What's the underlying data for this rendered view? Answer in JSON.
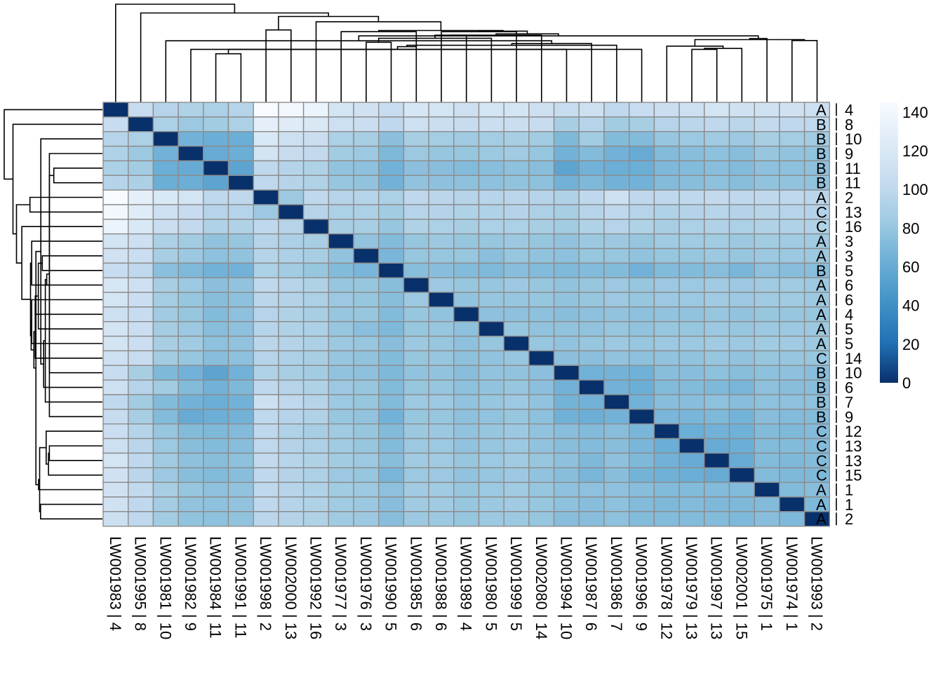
{
  "chart_data": {
    "type": "heatmap",
    "title": "",
    "colorscale": {
      "name": "Blues",
      "min": 0,
      "max": 145,
      "ticks": [
        0,
        20,
        40,
        60,
        80,
        100,
        120,
        140
      ],
      "stops": [
        "#08306b",
        "#2171b5",
        "#4292c6",
        "#6baed6",
        "#9ecae1",
        "#c6dbef",
        "#deebf7",
        "#f7fbff"
      ]
    },
    "samples": [
      {
        "id": "LW001983",
        "group": "A",
        "value": "4"
      },
      {
        "id": "LW001995",
        "group": "B",
        "value": "8"
      },
      {
        "id": "LW001981",
        "group": "B",
        "value": "10"
      },
      {
        "id": "LW001982",
        "group": "B",
        "value": "9"
      },
      {
        "id": "LW001984",
        "group": "B",
        "value": "11"
      },
      {
        "id": "LW001991",
        "group": "B",
        "value": "11"
      },
      {
        "id": "LW001998",
        "group": "A",
        "value": "2"
      },
      {
        "id": "LW002000",
        "group": "C",
        "value": "13"
      },
      {
        "id": "LW001992",
        "group": "C",
        "value": "16"
      },
      {
        "id": "LW001977",
        "group": "A",
        "value": "3"
      },
      {
        "id": "LW001976",
        "group": "A",
        "value": "3"
      },
      {
        "id": "LW001990",
        "group": "B",
        "value": "5"
      },
      {
        "id": "LW001985",
        "group": "A",
        "value": "6"
      },
      {
        "id": "LW001988",
        "group": "A",
        "value": "6"
      },
      {
        "id": "LW001989",
        "group": "A",
        "value": "4"
      },
      {
        "id": "LW001980",
        "group": "A",
        "value": "5"
      },
      {
        "id": "LW001999",
        "group": "A",
        "value": "5"
      },
      {
        "id": "LW002080",
        "group": "C",
        "value": "14"
      },
      {
        "id": "LW001994",
        "group": "B",
        "value": "10"
      },
      {
        "id": "LW001987",
        "group": "B",
        "value": "6"
      },
      {
        "id": "LW001986",
        "group": "B",
        "value": "7"
      },
      {
        "id": "LW001996",
        "group": "B",
        "value": "9"
      },
      {
        "id": "LW001978",
        "group": "C",
        "value": "12"
      },
      {
        "id": "LW001979",
        "group": "C",
        "value": "13"
      },
      {
        "id": "LW001997",
        "group": "C",
        "value": "13"
      },
      {
        "id": "LW002001",
        "group": "C",
        "value": "15"
      },
      {
        "id": "LW001975",
        "group": "A",
        "value": "1"
      },
      {
        "id": "LW001974",
        "group": "A",
        "value": "1"
      },
      {
        "id": "LW001993",
        "group": "A",
        "value": "2"
      }
    ],
    "matrix_lower": [
      [],
      [
        105
      ],
      [
        95,
        90
      ],
      [
        92,
        82,
        65
      ],
      [
        90,
        85,
        62,
        60
      ],
      [
        95,
        90,
        62,
        62,
        55
      ],
      [
        145,
        130,
        120,
        115,
        100,
        100
      ],
      [
        140,
        125,
        110,
        105,
        95,
        95,
        82
      ],
      [
        135,
        120,
        108,
        102,
        92,
        92,
        100,
        95
      ],
      [
        115,
        110,
        90,
        85,
        78,
        80,
        95,
        90,
        88
      ],
      [
        112,
        108,
        88,
        82,
        76,
        78,
        95,
        90,
        88,
        78
      ],
      [
        105,
        100,
        75,
        70,
        65,
        65,
        90,
        85,
        80,
        72,
        68
      ],
      [
        118,
        110,
        88,
        82,
        75,
        78,
        100,
        95,
        92,
        80,
        80,
        74
      ],
      [
        115,
        108,
        86,
        80,
        74,
        76,
        98,
        94,
        90,
        82,
        80,
        74,
        82
      ],
      [
        110,
        105,
        84,
        80,
        72,
        76,
        95,
        92,
        88,
        80,
        80,
        72,
        80,
        78
      ],
      [
        115,
        108,
        86,
        82,
        74,
        76,
        96,
        92,
        90,
        80,
        75,
        70,
        80,
        80,
        76
      ],
      [
        115,
        108,
        88,
        84,
        76,
        78,
        98,
        94,
        90,
        82,
        80,
        74,
        82,
        80,
        76,
        80
      ],
      [
        110,
        105,
        85,
        80,
        74,
        76,
        95,
        90,
        88,
        80,
        78,
        72,
        80,
        80,
        76,
        78,
        80
      ],
      [
        105,
        88,
        70,
        65,
        55,
        65,
        92,
        88,
        85,
        78,
        76,
        70,
        78,
        78,
        74,
        78,
        78,
        75
      ],
      [
        110,
        95,
        85,
        72,
        65,
        70,
        100,
        95,
        92,
        82,
        80,
        72,
        80,
        80,
        76,
        78,
        80,
        75,
        65
      ],
      [
        100,
        85,
        72,
        65,
        62,
        65,
        110,
        100,
        95,
        82,
        80,
        72,
        82,
        82,
        78,
        80,
        82,
        78,
        66,
        65
      ],
      [
        105,
        88,
        72,
        60,
        62,
        65,
        100,
        95,
        92,
        80,
        78,
        65,
        80,
        80,
        76,
        78,
        80,
        76,
        64,
        62,
        65
      ],
      [
        108,
        95,
        80,
        72,
        70,
        72,
        100,
        92,
        88,
        84,
        80,
        72,
        82,
        82,
        78,
        80,
        82,
        78,
        74,
        72,
        74,
        68
      ],
      [
        110,
        98,
        82,
        74,
        72,
        74,
        100,
        94,
        90,
        84,
        80,
        72,
        82,
        82,
        78,
        80,
        82,
        78,
        74,
        72,
        74,
        68,
        62
      ],
      [
        115,
        100,
        84,
        76,
        74,
        76,
        102,
        96,
        92,
        85,
        82,
        74,
        84,
        84,
        80,
        82,
        84,
        80,
        76,
        70,
        76,
        70,
        65,
        60
      ],
      [
        112,
        98,
        82,
        74,
        72,
        74,
        100,
        94,
        90,
        82,
        80,
        68,
        82,
        82,
        78,
        80,
        82,
        78,
        74,
        68,
        74,
        66,
        64,
        62,
        60
      ],
      [
        112,
        102,
        88,
        80,
        76,
        78,
        100,
        96,
        92,
        85,
        82,
        76,
        84,
        84,
        80,
        82,
        84,
        80,
        76,
        76,
        76,
        74,
        72,
        72,
        72,
        72
      ],
      [
        112,
        100,
        86,
        78,
        76,
        78,
        100,
        95,
        92,
        84,
        82,
        74,
        84,
        84,
        80,
        82,
        84,
        80,
        76,
        74,
        76,
        72,
        70,
        72,
        70,
        70,
        72
      ],
      [
        110,
        100,
        85,
        78,
        76,
        78,
        98,
        94,
        92,
        84,
        82,
        74,
        82,
        82,
        80,
        82,
        82,
        80,
        74,
        74,
        76,
        72,
        72,
        72,
        72,
        70,
        74,
        70
      ]
    ],
    "row_dendrogram_order": [
      "LW001983",
      "LW001995",
      "LW001981",
      "LW001982",
      "LW001984",
      "LW001991",
      "LW001998",
      "LW002000",
      "LW001992",
      "LW001977",
      "LW001976",
      "LW001990",
      "LW001985",
      "LW001988",
      "LW001989",
      "LW001980",
      "LW001999",
      "LW002080",
      "LW001994",
      "LW001987",
      "LW001986",
      "LW001996",
      "LW001978",
      "LW001979",
      "LW001997",
      "LW002001",
      "LW001975",
      "LW001974",
      "LW001993"
    ],
    "column_dendrogram_order": [
      "LW001983",
      "LW001995",
      "LW001981",
      "LW001982",
      "LW001984",
      "LW001991",
      "LW001998",
      "LW002000",
      "LW001992",
      "LW001977",
      "LW001976",
      "LW001990",
      "LW001985",
      "LW001988",
      "LW001989",
      "LW001980",
      "LW001999",
      "LW002080",
      "LW001994",
      "LW001987",
      "LW001986",
      "LW001996",
      "LW001978",
      "LW001979",
      "LW001997",
      "LW002001",
      "LW001975",
      "LW001974",
      "LW001993"
    ]
  }
}
